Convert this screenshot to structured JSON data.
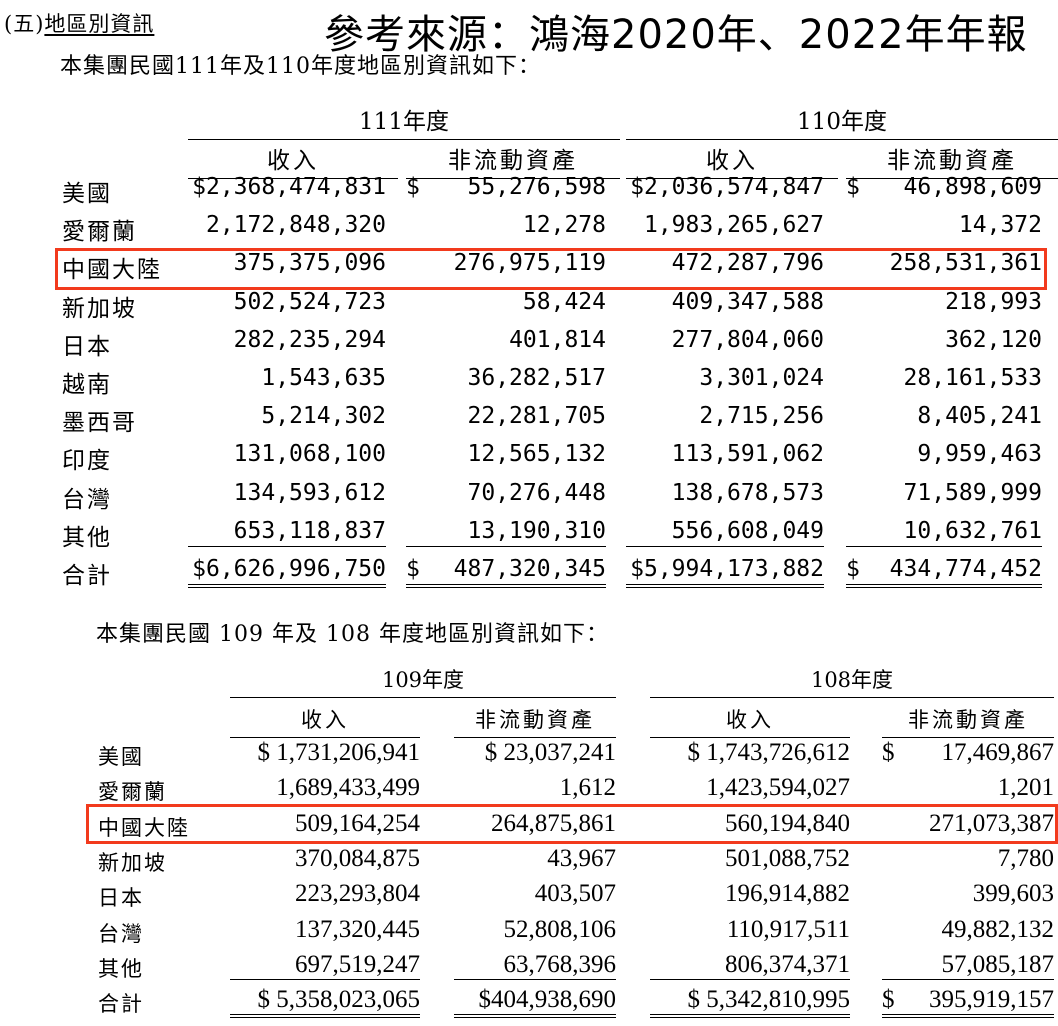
{
  "section_title": {
    "prefix": "(五)",
    "label": "地區別資訊"
  },
  "source_note": "參考來源：鴻海2020年、2022年年報",
  "table1": {
    "intro": "本集團民國111年及110年度地區別資訊如下：",
    "year_left": "111年度",
    "year_right": "110年度",
    "col_revenue": "收入",
    "col_noncurrent": "非流動資產",
    "rows": [
      {
        "label": "美國",
        "c1": "$2,368,474,831",
        "c2sym": "$",
        "c2": "55,276,598",
        "c3": "$2,036,574,847",
        "c4sym": "$",
        "c4": "46,898,609"
      },
      {
        "label": "愛爾蘭",
        "c1": "2,172,848,320",
        "c2sym": "",
        "c2": "12,278",
        "c3": "1,983,265,627",
        "c4sym": "",
        "c4": "14,372"
      },
      {
        "label": "中國大陸",
        "c1": "375,375,096",
        "c2sym": "",
        "c2": "276,975,119",
        "c3": "472,287,796",
        "c4sym": "",
        "c4": "258,531,361"
      },
      {
        "label": "新加坡",
        "c1": "502,524,723",
        "c2sym": "",
        "c2": "58,424",
        "c3": "409,347,588",
        "c4sym": "",
        "c4": "218,993"
      },
      {
        "label": "日本",
        "c1": "282,235,294",
        "c2sym": "",
        "c2": "401,814",
        "c3": "277,804,060",
        "c4sym": "",
        "c4": "362,120"
      },
      {
        "label": "越南",
        "c1": "1,543,635",
        "c2sym": "",
        "c2": "36,282,517",
        "c3": "3,301,024",
        "c4sym": "",
        "c4": "28,161,533"
      },
      {
        "label": "墨西哥",
        "c1": "5,214,302",
        "c2sym": "",
        "c2": "22,281,705",
        "c3": "2,715,256",
        "c4sym": "",
        "c4": "8,405,241"
      },
      {
        "label": "印度",
        "c1": "131,068,100",
        "c2sym": "",
        "c2": "12,565,132",
        "c3": "113,591,062",
        "c4sym": "",
        "c4": "9,959,463"
      },
      {
        "label": "台灣",
        "c1": "134,593,612",
        "c2sym": "",
        "c2": "70,276,448",
        "c3": "138,678,573",
        "c4sym": "",
        "c4": "71,589,999"
      },
      {
        "label": "其他",
        "c1": "653,118,837",
        "c2sym": "",
        "c2": "13,190,310",
        "c3": "556,608,049",
        "c4sym": "",
        "c4": "10,632,761"
      },
      {
        "label": "合計",
        "c1": "$6,626,996,750",
        "c2sym": "$",
        "c2": "487,320,345",
        "c3": "$5,994,173,882",
        "c4sym": "$",
        "c4": "434,774,452"
      }
    ]
  },
  "table2": {
    "intro": "本集團民國 109 年及 108 年度地區別資訊如下：",
    "year_left": "109年度",
    "year_right": "108年度",
    "col_revenue": "收入",
    "col_noncurrent": "非流動資產",
    "rows": [
      {
        "label": "美國",
        "c1": "$ 1,731,206,941",
        "c2": "$ 23,037,241",
        "c3": "$ 1,743,726,612",
        "c4sym": "$",
        "c4": "17,469,867"
      },
      {
        "label": "愛爾蘭",
        "c1": "1,689,433,499",
        "c2": "1,612",
        "c3": "1,423,594,027",
        "c4sym": "",
        "c4": "1,201"
      },
      {
        "label": "中國大陸",
        "c1": "509,164,254",
        "c2": "264,875,861",
        "c3": "560,194,840",
        "c4sym": "",
        "c4": "271,073,387"
      },
      {
        "label": "新加坡",
        "c1": "370,084,875",
        "c2": "43,967",
        "c3": "501,088,752",
        "c4sym": "",
        "c4": "7,780"
      },
      {
        "label": "日本",
        "c1": "223,293,804",
        "c2": "403,507",
        "c3": "196,914,882",
        "c4sym": "",
        "c4": "399,603"
      },
      {
        "label": "台灣",
        "c1": "137,320,445",
        "c2": "52,808,106",
        "c3": "110,917,511",
        "c4sym": "",
        "c4": "49,882,132"
      },
      {
        "label": "其他",
        "c1": "697,519,247",
        "c2": "63,768,396",
        "c3": "806,374,371",
        "c4sym": "",
        "c4": "57,085,187"
      },
      {
        "label": "合計",
        "c1": "$ 5,358,023,065",
        "c2": "$404,938,690",
        "c3": "$ 5,342,810,995",
        "c4sym": "$",
        "c4": "395,919,157"
      }
    ]
  },
  "highlight_color": "#f23a1d"
}
